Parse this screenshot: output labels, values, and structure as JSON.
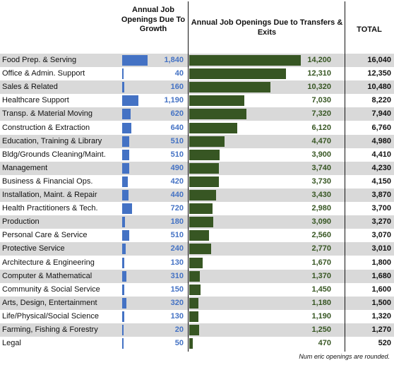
{
  "chart_data": {
    "type": "bar",
    "headers": {
      "growth": "Annual Job Openings Due To Growth",
      "transfers": "Annual Job Openings Due to Transfers & Exits",
      "total": "TOTAL"
    },
    "categories": [
      "Food Prep. & Serving",
      "Office & Admin. Support",
      "Sales & Related",
      "Healthcare Support",
      "Transp. & Material Moving",
      "Construction & Extraction",
      "Education, Training & Library",
      "Bldg/Grounds Cleaning/Maint.",
      "Management",
      "Business & Financial Ops.",
      "Installation, Maint. & Repair",
      "Health Practitioners & Tech.",
      "Production",
      "Personal Care & Service",
      "Protective Service",
      "Architecture & Engineering",
      "Computer & Mathematical",
      "Community & Social Service",
      "Arts, Design, Entertainment",
      "Life/Physical/Social Science",
      "Farming, Fishing & Forestry",
      "Legal"
    ],
    "series": [
      {
        "name": "Annual Job Openings Due To Growth",
        "color": "#4472c4",
        "values": [
          1840,
          40,
          160,
          1190,
          620,
          640,
          510,
          510,
          490,
          420,
          440,
          720,
          180,
          510,
          240,
          130,
          310,
          150,
          320,
          130,
          20,
          50
        ],
        "labels": [
          "1,840",
          "40",
          "160",
          "1,190",
          "620",
          "640",
          "510",
          "510",
          "490",
          "420",
          "440",
          "720",
          "180",
          "510",
          "240",
          "130",
          "310",
          "150",
          "320",
          "130",
          "20",
          "50"
        ]
      },
      {
        "name": "Annual Job Openings Due to Transfers & Exits",
        "color": "#375623",
        "values": [
          14200,
          12310,
          10320,
          7030,
          7320,
          6120,
          4470,
          3900,
          3740,
          3730,
          3430,
          2980,
          3090,
          2560,
          2770,
          1670,
          1370,
          1450,
          1180,
          1190,
          1250,
          470
        ],
        "labels": [
          "14,200",
          "12,310",
          "10,320",
          "7,030",
          "7,320",
          "6,120",
          "4,470",
          "3,900",
          "3,740",
          "3,730",
          "3,430",
          "2,980",
          "3,090",
          "2,560",
          "2,770",
          "1,670",
          "1,370",
          "1,450",
          "1,180",
          "1,190",
          "1,250",
          "470"
        ]
      }
    ],
    "totals": [
      "16,040",
      "12,350",
      "10,480",
      "8,220",
      "7,940",
      "6,760",
      "4,980",
      "4,410",
      "4,230",
      "4,150",
      "3,870",
      "3,700",
      "3,270",
      "3,070",
      "3,010",
      "1,800",
      "1,680",
      "1,600",
      "1,500",
      "1,320",
      "1,270",
      "520"
    ],
    "footnote": "Num eric openings are rounded."
  }
}
